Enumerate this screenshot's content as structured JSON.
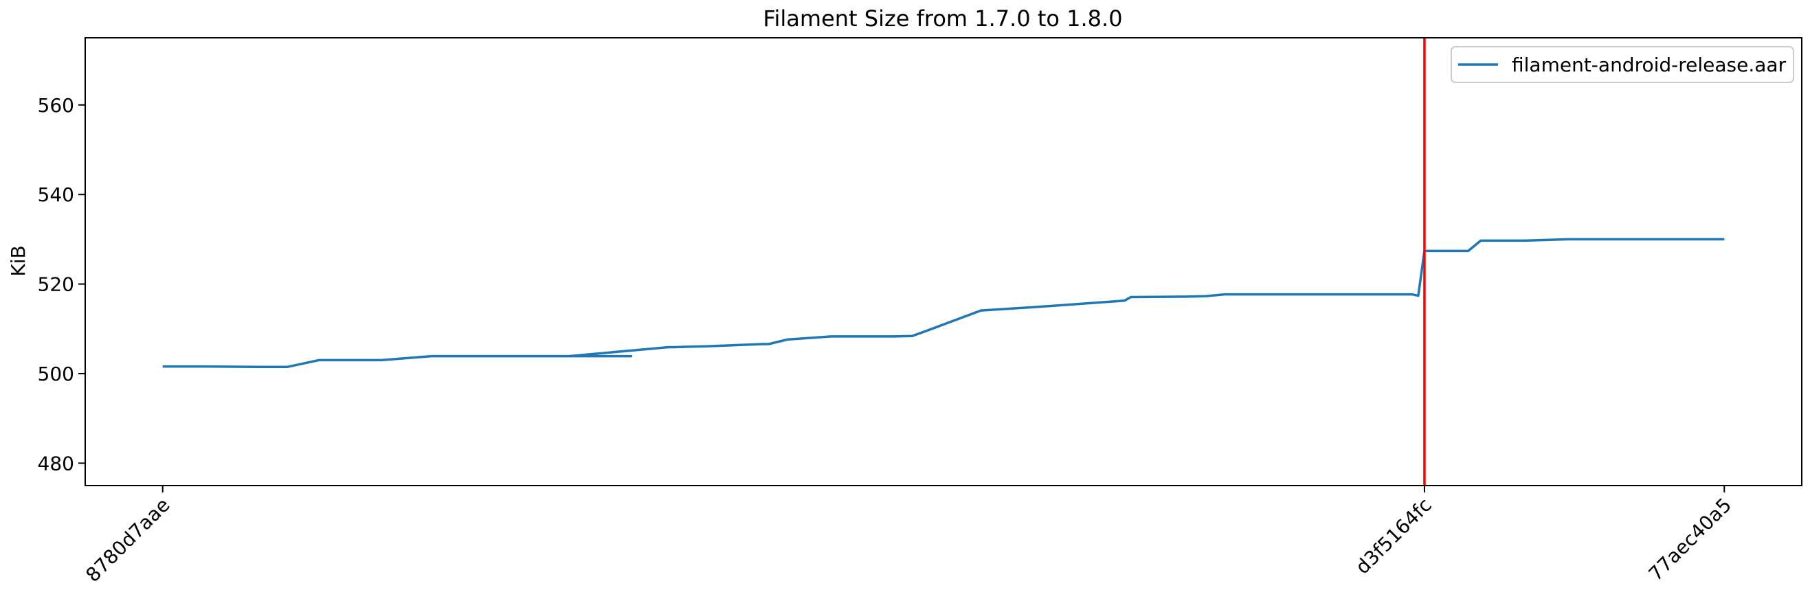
{
  "chart_data": {
    "type": "line",
    "title": "Filament Size from 1.7.0 to 1.8.0",
    "xlabel": "",
    "ylabel": "KiB",
    "ylim": [
      475,
      575
    ],
    "yticks": [
      480,
      500,
      520,
      540,
      560
    ],
    "x_tick_labels": [
      "8780d7aae",
      "d3f5164fc",
      "77aec40a5"
    ],
    "x_tick_positions": [
      0,
      202,
      250
    ],
    "xlim": [
      -12.4,
      262.4
    ],
    "marker_line": {
      "x": 202,
      "color": "#ff0000"
    },
    "grid": false,
    "legend_position": "top-right",
    "series": [
      {
        "name": "filament-android-release.aar",
        "color": "#1f77b4",
        "x": [
          0,
          7,
          15,
          20,
          25,
          28,
          35,
          43,
          47,
          50,
          55,
          63,
          60,
          75,
          70,
          65,
          81,
          82,
          84,
          87,
          96,
          97,
          100,
          107,
          110,
          117,
          120,
          122,
          131,
          140,
          154,
          155,
          164,
          167,
          170,
          178,
          190,
          195,
          200,
          201,
          202,
          209,
          211,
          218,
          225,
          235,
          250
        ],
        "y": [
          501.6,
          501.6,
          501.5,
          501.5,
          503.0,
          503.0,
          503.0,
          503.9,
          503.9,
          503.9,
          503.9,
          503.9,
          503.9,
          503.9,
          503.9,
          503.9,
          505.9,
          505.9,
          506.0,
          506.1,
          506.6,
          506.6,
          507.6,
          508.3,
          508.3,
          508.3,
          508.4,
          509.4,
          514.1,
          514.9,
          516.3,
          517.1,
          517.2,
          517.3,
          517.7,
          517.7,
          517.7,
          517.7,
          517.7,
          517.4,
          527.4,
          527.4,
          529.7,
          529.7,
          530.0,
          530.0,
          530.0
        ]
      }
    ]
  }
}
